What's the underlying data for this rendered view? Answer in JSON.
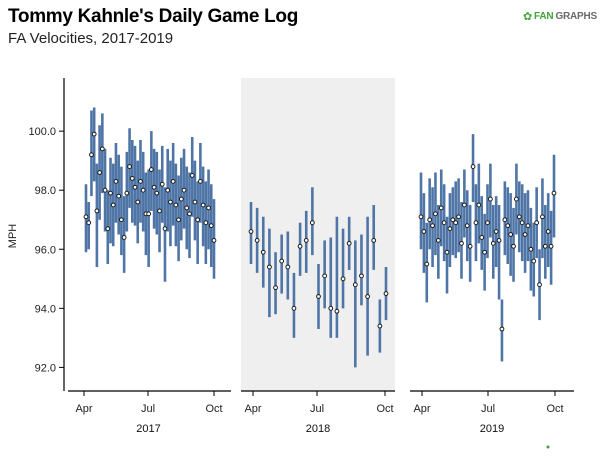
{
  "title": "Tommy Kahnle's Daily Game Log",
  "subtitle": "FA Velocities, 2017-2019",
  "brand": {
    "icon": "leaf-icon",
    "prefix": "FAN",
    "name": "GRAPHS"
  },
  "colors": {
    "bar": "#4f75a6",
    "panel_shade": "#efefef",
    "point": "#1b1b1b",
    "brand_green": "#3fa33a"
  },
  "chart_data": {
    "type": "errorbar",
    "ylabel": "MPH",
    "ylim": [
      91.2,
      101.8
    ],
    "yticks": [
      "92.0",
      "94.0",
      "96.0",
      "98.0",
      "100.0"
    ],
    "ytick_values": [
      92,
      94,
      96,
      98,
      100
    ],
    "panels": [
      {
        "year": "2017",
        "xlabels": [
          "Apr",
          "Jul",
          "Oct"
        ],
        "shaded": false,
        "games": [
          [
            97.1,
            95.9,
            98.2
          ],
          [
            96.9,
            96.0,
            97.6
          ],
          [
            99.2,
            97.8,
            100.7
          ],
          [
            99.9,
            98.3,
            100.8
          ],
          [
            97.3,
            95.4,
            98.9
          ],
          [
            98.6,
            97.0,
            100.2
          ],
          [
            99.4,
            97.9,
            100.6
          ],
          [
            98.0,
            96.6,
            99.4
          ],
          [
            96.7,
            95.5,
            98.0
          ],
          [
            97.9,
            96.2,
            99.1
          ],
          [
            97.5,
            96.1,
            98.9
          ],
          [
            98.3,
            96.9,
            99.6
          ],
          [
            97.8,
            96.5,
            99.2
          ],
          [
            97.0,
            95.8,
            98.8
          ],
          [
            96.4,
            95.2,
            97.8
          ],
          [
            97.9,
            96.6,
            99.3
          ],
          [
            98.8,
            97.4,
            100.1
          ],
          [
            98.4,
            96.9,
            99.7
          ],
          [
            98.1,
            96.8,
            99.5
          ],
          [
            97.6,
            96.2,
            99.0
          ],
          [
            98.3,
            96.9,
            99.7
          ],
          [
            98.0,
            96.6,
            99.3
          ],
          [
            97.2,
            95.8,
            98.6
          ],
          [
            97.2,
            95.4,
            98.7
          ],
          [
            98.7,
            97.3,
            100.0
          ],
          [
            98.1,
            96.7,
            99.4
          ],
          [
            97.9,
            96.5,
            99.3
          ],
          [
            97.3,
            95.9,
            98.7
          ],
          [
            98.2,
            96.9,
            99.5
          ],
          [
            96.7,
            94.9,
            98.1
          ],
          [
            98.0,
            96.6,
            99.4
          ],
          [
            97.6,
            96.1,
            99.0
          ],
          [
            98.3,
            96.8,
            99.6
          ],
          [
            97.5,
            96.1,
            98.9
          ],
          [
            97.0,
            95.6,
            98.5
          ],
          [
            97.7,
            96.3,
            99.1
          ],
          [
            98.0,
            96.7,
            99.4
          ],
          [
            97.4,
            96.0,
            98.8
          ],
          [
            97.2,
            95.7,
            98.6
          ],
          [
            98.5,
            97.1,
            99.8
          ],
          [
            97.6,
            96.3,
            99.0
          ],
          [
            97.0,
            95.5,
            98.3
          ],
          [
            98.3,
            96.9,
            99.6
          ],
          [
            97.5,
            96.1,
            98.8
          ],
          [
            96.9,
            95.5,
            98.3
          ],
          [
            97.4,
            96.0,
            98.7
          ],
          [
            96.8,
            95.4,
            98.2
          ],
          [
            96.3,
            95.0,
            97.7
          ]
        ]
      },
      {
        "year": "2018",
        "xlabels": [
          "Apr",
          "Jul",
          "Oct"
        ],
        "shaded": true,
        "games": [
          [
            96.6,
            95.5,
            97.6
          ],
          [
            96.3,
            95.2,
            97.4
          ],
          [
            95.9,
            94.7,
            97.1
          ],
          [
            95.4,
            93.7,
            96.7
          ],
          [
            94.7,
            93.8,
            95.9
          ],
          [
            95.6,
            94.5,
            96.5
          ],
          [
            95.4,
            94.3,
            96.6
          ],
          [
            94.0,
            93.0,
            95.2
          ],
          [
            96.1,
            95.1,
            96.9
          ],
          [
            96.3,
            95.2,
            97.3
          ],
          [
            96.9,
            95.8,
            98.1
          ],
          [
            94.4,
            93.3,
            95.5
          ],
          [
            95.1,
            94.0,
            96.3
          ],
          [
            94.0,
            93.0,
            96.4
          ],
          [
            93.9,
            93.0,
            97.1
          ],
          [
            95.0,
            94.0,
            96.7
          ],
          [
            96.2,
            95.3,
            97.1
          ],
          [
            94.8,
            92.0,
            96.3
          ],
          [
            95.1,
            94.1,
            96.5
          ],
          [
            94.4,
            92.4,
            97.1
          ],
          [
            96.3,
            95.3,
            97.5
          ],
          [
            93.4,
            92.5,
            94.3
          ],
          [
            94.5,
            93.6,
            95.4
          ]
        ]
      },
      {
        "year": "2019",
        "xlabels": [
          "Apr",
          "Jul",
          "Oct"
        ],
        "shaded": false,
        "games": [
          [
            97.1,
            96.0,
            98.6
          ],
          [
            96.6,
            95.2,
            97.9
          ],
          [
            95.5,
            94.2,
            96.9
          ],
          [
            97.0,
            96.0,
            98.4
          ],
          [
            96.8,
            95.4,
            98.1
          ],
          [
            97.2,
            95.8,
            98.6
          ],
          [
            96.3,
            95.0,
            97.5
          ],
          [
            97.4,
            96.1,
            98.7
          ],
          [
            96.9,
            95.6,
            98.2
          ],
          [
            95.9,
            94.5,
            97.1
          ],
          [
            96.7,
            95.4,
            97.9
          ],
          [
            97.0,
            95.8,
            98.1
          ],
          [
            96.9,
            95.7,
            98.3
          ],
          [
            97.1,
            95.9,
            98.4
          ],
          [
            96.2,
            95.0,
            97.6
          ],
          [
            97.5,
            96.4,
            98.7
          ],
          [
            96.8,
            95.6,
            98.0
          ],
          [
            96.1,
            94.9,
            97.5
          ],
          [
            98.8,
            97.6,
            99.9
          ],
          [
            96.9,
            95.6,
            98.2
          ],
          [
            97.5,
            96.2,
            98.9
          ],
          [
            96.4,
            95.3,
            97.8
          ],
          [
            95.9,
            94.6,
            97.2
          ],
          [
            96.9,
            95.7,
            98.2
          ],
          [
            97.7,
            96.4,
            98.9
          ],
          [
            96.2,
            95.0,
            97.5
          ],
          [
            96.6,
            95.4,
            97.8
          ],
          [
            96.3,
            94.3,
            97.5
          ],
          [
            93.3,
            92.2,
            94.3
          ],
          [
            97.0,
            95.8,
            98.3
          ],
          [
            96.8,
            95.5,
            98.1
          ],
          [
            96.5,
            95.1,
            97.9
          ],
          [
            96.1,
            94.9,
            97.4
          ],
          [
            97.7,
            96.5,
            98.9
          ],
          [
            97.1,
            95.9,
            98.3
          ],
          [
            96.9,
            95.6,
            98.2
          ],
          [
            96.5,
            95.2,
            97.9
          ],
          [
            96.8,
            95.6,
            98.0
          ],
          [
            96.0,
            94.6,
            97.4
          ],
          [
            95.6,
            94.4,
            96.9
          ],
          [
            96.9,
            95.7,
            98.1
          ],
          [
            94.8,
            93.6,
            96.0
          ],
          [
            97.1,
            95.7,
            98.4
          ],
          [
            96.1,
            95.0,
            97.5
          ],
          [
            96.6,
            95.4,
            97.9
          ],
          [
            96.1,
            94.8,
            97.3
          ],
          [
            97.9,
            96.4,
            99.2
          ]
        ]
      }
    ]
  }
}
